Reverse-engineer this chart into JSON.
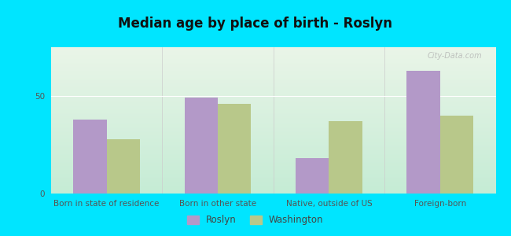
{
  "title": "Median age by place of birth - Roslyn",
  "categories": [
    "Born in state of residence",
    "Born in other state",
    "Native, outside of US",
    "Foreign-born"
  ],
  "roslyn_values": [
    38,
    49,
    18,
    63
  ],
  "washington_values": [
    28,
    46,
    37,
    40
  ],
  "roslyn_color": "#b399c8",
  "washington_color": "#b8c88a",
  "background_outer": "#00e5ff",
  "background_plot_top": "#eaf5e8",
  "background_plot_bottom": "#c5ecd5",
  "ylim": [
    0,
    75
  ],
  "yticks": [
    0,
    50
  ],
  "bar_width": 0.3,
  "title_fontsize": 12,
  "tick_fontsize": 7.5,
  "legend_fontsize": 8.5,
  "watermark": "City-Data.com"
}
